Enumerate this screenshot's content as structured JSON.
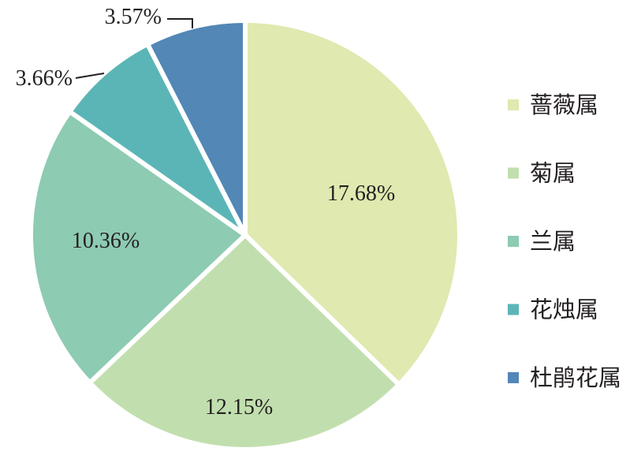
{
  "chart_data": {
    "type": "pie",
    "title": "",
    "legend_position": "right",
    "slices": [
      {
        "label": "蔷薇属",
        "value": 17.68,
        "display": "17.68%",
        "color": "#dfe9b0"
      },
      {
        "label": "菊属",
        "value": 12.15,
        "display": "12.15%",
        "color": "#c1dfae"
      },
      {
        "label": "兰属",
        "value": 10.36,
        "display": "10.36%",
        "color": "#8dcbb2"
      },
      {
        "label": "花烛属",
        "value": 3.66,
        "display": "3.66%",
        "color": "#5bb5b6"
      },
      {
        "label": "杜鹃花属",
        "value": 3.57,
        "display": "3.57%",
        "color": "#5287b6"
      }
    ]
  }
}
